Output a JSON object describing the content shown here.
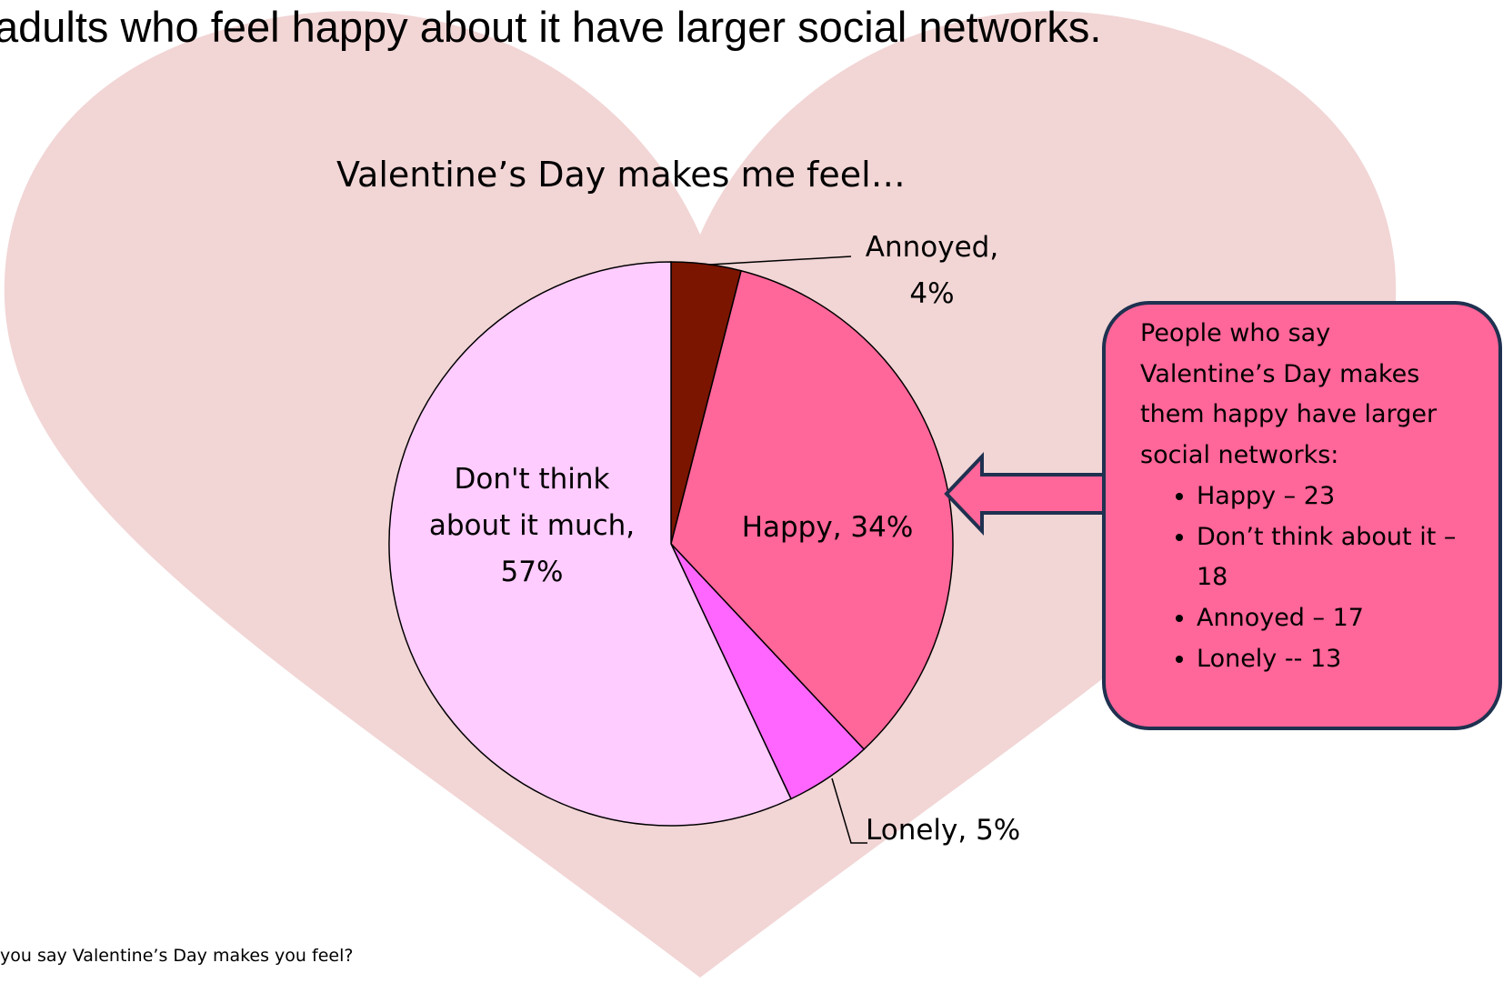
{
  "header": {
    "text": "adults who feel happy about it have larger social networks."
  },
  "chart_data": {
    "type": "pie",
    "title": "Valentine’s Day makes me feel…",
    "values": [
      4,
      34,
      5,
      57
    ],
    "value_labels": [
      "Annoyed, 4%",
      "Happy, 34%",
      "Lonely, 5%",
      "Don't think about it much, 57%"
    ],
    "colors": [
      "#7b1500",
      "#ff6699",
      "#ff66ff",
      "#ffccff"
    ]
  },
  "callout": {
    "title": "People who say Valentine’s Day makes them happy have larger social networks:",
    "items": [
      "Happy – 23",
      "Don’t think about it – 18",
      "Annoyed – 17",
      "Lonely -- 13"
    ]
  },
  "footnote": {
    "text": "you say Valentine’s Day makes you feel?"
  }
}
